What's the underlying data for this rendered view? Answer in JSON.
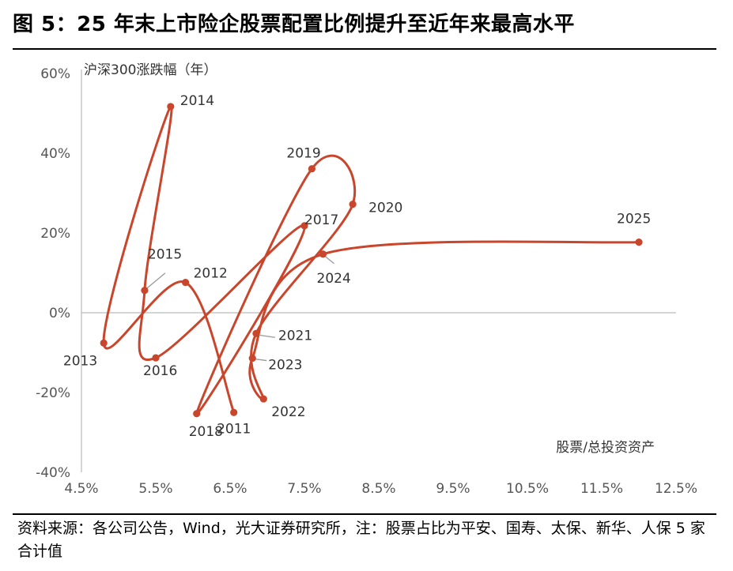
{
  "header": {
    "title": "图 5：25 年末上市险企股票配置比例提升至近年来最高水平"
  },
  "footer": {
    "source": "资料来源：各公司公告，Wind，光大证券研究所，注：股票占比为平安、国寿、太保、新华、人保 5 家合计值"
  },
  "chart_data": {
    "type": "scatter",
    "connected": true,
    "title": "",
    "xlabel": "股票/总投资资产",
    "ylabel": "沪深300涨跌幅（年）",
    "xlim": [
      4.5,
      12.5
    ],
    "ylim": [
      -40,
      60
    ],
    "x_ticks": [
      "4.5%",
      "5.5%",
      "6.5%",
      "7.5%",
      "8.5%",
      "9.5%",
      "10.5%",
      "11.5%",
      "12.5%"
    ],
    "y_ticks": [
      "-40%",
      "-20%",
      "0%",
      "20%",
      "40%",
      "60%"
    ],
    "series_color": "#c9462c",
    "points": [
      {
        "year": "2011",
        "x": 6.55,
        "y": -25.0
      },
      {
        "year": "2012",
        "x": 5.9,
        "y": 7.6
      },
      {
        "year": "2013",
        "x": 4.8,
        "y": -7.6
      },
      {
        "year": "2014",
        "x": 5.7,
        "y": 51.7
      },
      {
        "year": "2015",
        "x": 5.35,
        "y": 5.6
      },
      {
        "year": "2016",
        "x": 5.5,
        "y": -11.3
      },
      {
        "year": "2017",
        "x": 7.5,
        "y": 21.8
      },
      {
        "year": "2018",
        "x": 6.05,
        "y": -25.3
      },
      {
        "year": "2019",
        "x": 7.6,
        "y": 36.1
      },
      {
        "year": "2020",
        "x": 8.15,
        "y": 27.2
      },
      {
        "year": "2021",
        "x": 6.85,
        "y": -5.2
      },
      {
        "year": "2022",
        "x": 6.95,
        "y": -21.6
      },
      {
        "year": "2023",
        "x": 6.8,
        "y": -11.4
      },
      {
        "year": "2024",
        "x": 7.75,
        "y": 14.7
      },
      {
        "year": "2025",
        "x": 12.0,
        "y": 17.7
      }
    ]
  }
}
